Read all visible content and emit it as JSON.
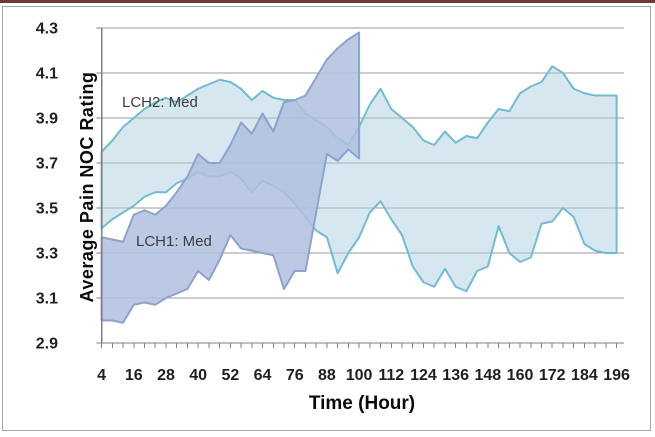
{
  "chart_data": {
    "type": "area",
    "title": "",
    "xlabel": "Time (Hour)",
    "ylabel": "Average Pain NOC Rating",
    "xlim": [
      4,
      198
    ],
    "ylim": [
      2.9,
      4.3
    ],
    "grid": "horizontal",
    "legend": "inline-labels",
    "x": [
      4,
      8,
      12,
      16,
      20,
      24,
      28,
      32,
      36,
      40,
      44,
      48,
      52,
      56,
      60,
      64,
      68,
      72,
      76,
      80,
      84,
      88,
      92,
      96,
      100,
      104,
      108,
      112,
      116,
      120,
      124,
      128,
      132,
      136,
      140,
      144,
      148,
      152,
      156,
      160,
      164,
      168,
      172,
      176,
      180,
      184,
      188,
      192,
      196
    ],
    "x_tick_labels": [
      "4",
      "16",
      "28",
      "40",
      "52",
      "64",
      "76",
      "88",
      "100",
      "112",
      "124",
      "136",
      "148",
      "160",
      "172",
      "184",
      "196"
    ],
    "y_tick_labels": [
      "2.9",
      "3.1",
      "3.3",
      "3.5",
      "3.7",
      "3.9",
      "4.1",
      "4.3"
    ],
    "series": [
      {
        "name": "LCH2: Med",
        "type": "band",
        "x_start": 4,
        "x_end": 196,
        "upper": [
          3.75,
          3.8,
          3.86,
          3.9,
          3.94,
          3.97,
          3.99,
          3.97,
          4.0,
          4.03,
          4.05,
          4.07,
          4.06,
          4.03,
          3.98,
          4.02,
          3.99,
          3.98,
          3.98,
          3.92,
          3.89,
          3.86,
          3.81,
          3.78,
          3.86,
          3.96,
          4.03,
          3.94,
          3.9,
          3.86,
          3.8,
          3.78,
          3.84,
          3.79,
          3.82,
          3.81,
          3.88,
          3.94,
          3.93,
          4.01,
          4.04,
          4.06,
          4.13,
          4.1,
          4.03,
          4.01,
          4.0,
          4.0,
          4.0
        ],
        "lower": [
          3.41,
          3.45,
          3.48,
          3.51,
          3.55,
          3.57,
          3.57,
          3.61,
          3.63,
          3.66,
          3.64,
          3.64,
          3.66,
          3.63,
          3.57,
          3.62,
          3.6,
          3.57,
          3.52,
          3.46,
          3.4,
          3.37,
          3.21,
          3.3,
          3.37,
          3.48,
          3.53,
          3.45,
          3.38,
          3.24,
          3.17,
          3.15,
          3.23,
          3.15,
          3.13,
          3.22,
          3.24,
          3.42,
          3.3,
          3.26,
          3.28,
          3.43,
          3.44,
          3.5,
          3.46,
          3.34,
          3.31,
          3.3,
          3.3
        ]
      },
      {
        "name": "LCH1: Med",
        "type": "band",
        "x_start": 4,
        "x_end": 100,
        "upper": [
          3.37,
          3.36,
          3.35,
          3.47,
          3.49,
          3.47,
          3.51,
          3.57,
          3.64,
          3.74,
          3.7,
          3.7,
          3.78,
          3.88,
          3.83,
          3.92,
          3.84,
          3.97,
          3.98,
          4.0,
          4.08,
          4.16,
          4.21,
          4.25,
          4.28
        ],
        "lower": [
          3.0,
          3.0,
          2.99,
          3.07,
          3.08,
          3.07,
          3.1,
          3.12,
          3.14,
          3.22,
          3.18,
          3.27,
          3.38,
          3.32,
          3.31,
          3.3,
          3.29,
          3.14,
          3.22,
          3.22,
          3.48,
          3.74,
          3.71,
          3.76,
          3.72
        ]
      }
    ]
  },
  "colors": {
    "band_light_fill": "#ADCFE1",
    "band_light_opacity": 0.5,
    "band_light_stroke": "#72BCD2",
    "band_dark_fill": "#AFC0DF",
    "band_dark_opacity": 0.85,
    "band_dark_stroke": "#8DA2CC",
    "gridline": "#9b9b9b",
    "axis": "#7f7f7f",
    "tick": "#7f7f7f",
    "tick_label": "#1f1f1f",
    "title_text": "#0a0a0a",
    "series_label_text": "#3d3d3d",
    "frame_border": "#a6a6a6",
    "top_bar": "#6e3a3a"
  }
}
